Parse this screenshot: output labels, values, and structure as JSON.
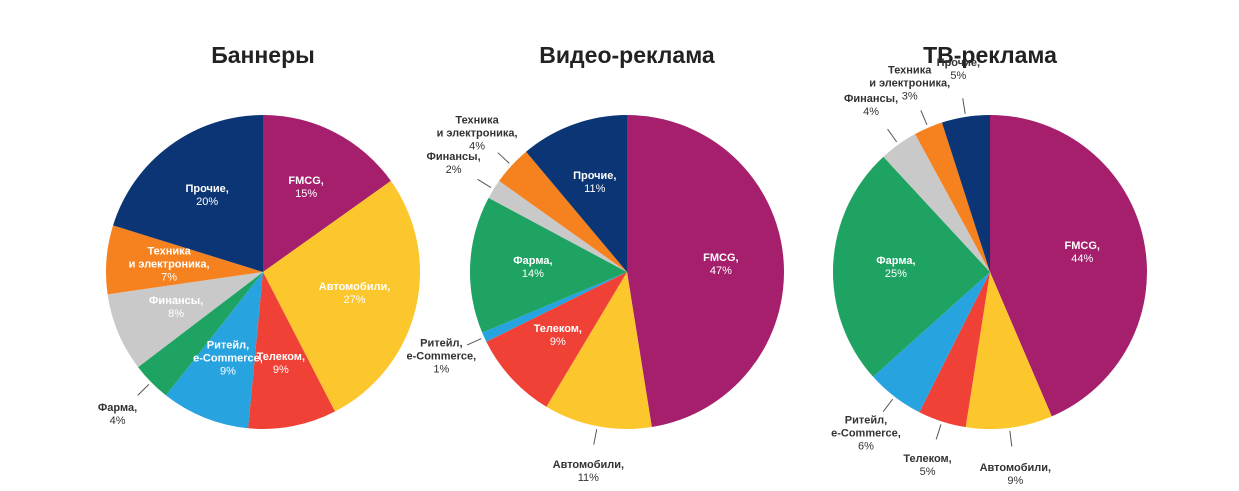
{
  "chart_data": [
    {
      "type": "pie",
      "title": "Баннеры",
      "categories": [
        "FMCG,",
        "Автомобили,",
        "Телеком,",
        "Ритейл,\ne-Commerce,",
        "Фарма,",
        "Финансы,",
        "Техника\nи электроника,",
        "Прочие,"
      ],
      "values": [
        15,
        27,
        9,
        9,
        4,
        8,
        7,
        20
      ],
      "value_labels": [
        "15%",
        "27%",
        "9%",
        "9%",
        "4%",
        "8%",
        "7%",
        "20%"
      ],
      "colors": [
        "#a51f6c",
        "#fcc62d",
        "#ef4136",
        "#27a3e0",
        "#1fa363",
        "#c9c9c9",
        "#f6821f",
        "#0b3574"
      ]
    },
    {
      "type": "pie",
      "title": "Видео-реклама",
      "categories": [
        "FMCG,",
        "Автомобили,",
        "Телеком,",
        "Ритейл,\ne-Commerce,",
        "Фарма,",
        "Финансы,",
        "Техника\nи электроника,",
        "Прочие,"
      ],
      "values": [
        47,
        11,
        9,
        1,
        14,
        2,
        4,
        11
      ],
      "value_labels": [
        "47%",
        "11%",
        "9%",
        "1%",
        "14%",
        "2%",
        "4%",
        "11%"
      ],
      "colors": [
        "#a51f6c",
        "#fcc62d",
        "#ef4136",
        "#27a3e0",
        "#1fa363",
        "#c9c9c9",
        "#f6821f",
        "#0b3574"
      ]
    },
    {
      "type": "pie",
      "title": "ТВ-реклама",
      "categories": [
        "FMCG,",
        "Автомобили,",
        "Телеком,",
        "Ритейл,\ne-Commerce,",
        "Фарма,",
        "Финансы,",
        "Техника\nи электроника,",
        "Прочие,"
      ],
      "values": [
        44,
        9,
        5,
        6,
        25,
        4,
        3,
        5
      ],
      "value_labels": [
        "44%",
        "9%",
        "5%",
        "6%",
        "25%",
        "4%",
        "3%",
        "5%"
      ],
      "colors": [
        "#a51f6c",
        "#fcc62d",
        "#ef4136",
        "#27a3e0",
        "#1fa363",
        "#c9c9c9",
        "#f6821f",
        "#0b3574"
      ]
    }
  ]
}
